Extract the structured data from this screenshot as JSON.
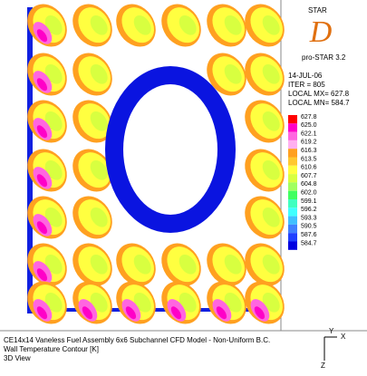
{
  "logo": {
    "brand": "STAR",
    "letter": "D",
    "version": "pro-STAR 3.2"
  },
  "info": {
    "date": "14-JUL-06",
    "iter": "ITER =   805",
    "max": "LOCAL MX=  627.8",
    "min": "LOCAL MN=  584.7"
  },
  "legend": {
    "labels": [
      "627.8",
      "625.0",
      "622.1",
      "619.2",
      "616.3",
      "613.5",
      "610.6",
      "607.7",
      "604.8",
      "602.0",
      "599.1",
      "596.2",
      "593.3",
      "590.5",
      "587.6",
      "584.7"
    ],
    "colors": [
      "#ff0000",
      "#ff00c8",
      "#ff66e0",
      "#ffb0f0",
      "#ffa020",
      "#ffc830",
      "#ffff40",
      "#d8ff40",
      "#a0ff60",
      "#40ff60",
      "#40ffc0",
      "#40ffff",
      "#40c0ff",
      "#4080ff",
      "#2040ff",
      "#0000e0"
    ]
  },
  "footer": {
    "line1": "CE14x14 Vaneless Fuel Assembly 6x6 Subchannel CFD Model - Non-Uniform B.C.",
    "line2": "Wall Temperature Contour  [K]",
    "line3": "3D View"
  },
  "axes": {
    "y": "Y",
    "x": "X",
    "z": "Z"
  }
}
